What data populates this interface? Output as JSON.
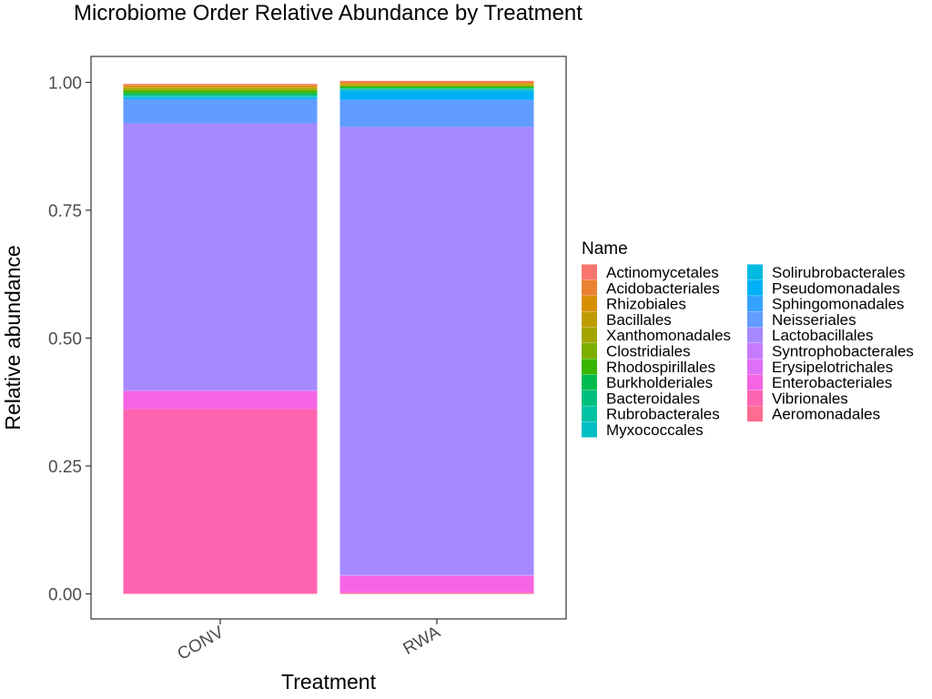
{
  "chart_data": {
    "type": "bar",
    "stacked": true,
    "title": "Microbiome Order Relative Abundance by Treatment",
    "xlabel": "Treatment",
    "ylabel": "Relative abundance",
    "categories": [
      "CONV",
      "RWA"
    ],
    "ylim": [
      0,
      1
    ],
    "y_ticks": [
      "0.00",
      "0.25",
      "0.50",
      "0.75",
      "1.00"
    ],
    "grid": false,
    "legend_title": "Name",
    "legend_position": "right",
    "series": [
      {
        "name": "Actinomycetales",
        "color": "#F8766D",
        "values": [
          0.002,
          0.002
        ]
      },
      {
        "name": "Acidobacteriales",
        "color": "#EA8331",
        "values": [
          0.002,
          0.002
        ]
      },
      {
        "name": "Rhizobiales",
        "color": "#D89000",
        "values": [
          0.003,
          0.003
        ]
      },
      {
        "name": "Bacillales",
        "color": "#C09B00",
        "values": [
          0.001,
          0.001
        ]
      },
      {
        "name": "Xanthomonadales",
        "color": "#A3A500",
        "values": [
          0.003,
          0.002
        ]
      },
      {
        "name": "Clostridiales",
        "color": "#7CAE00",
        "values": [
          0.003,
          0.001
        ]
      },
      {
        "name": "Rhodospirillales",
        "color": "#39B600",
        "values": [
          0.004,
          0.002
        ]
      },
      {
        "name": "Burkholderiales",
        "color": "#00BB4E",
        "values": [
          0.003,
          0.002
        ]
      },
      {
        "name": "Bacteroidales",
        "color": "#00BF7D",
        "values": [
          0.002,
          0.001
        ]
      },
      {
        "name": "Rubrobacterales",
        "color": "#00C1A3",
        "values": [
          0.001,
          0.001
        ]
      },
      {
        "name": "Myxococcales",
        "color": "#00BFC4",
        "values": [
          0.002,
          0.002
        ]
      },
      {
        "name": "Solirubrobacterales",
        "color": "#00BAE0",
        "values": [
          0.001,
          0.002
        ]
      },
      {
        "name": "Pseudomonadales",
        "color": "#00B0F6",
        "values": [
          0.002,
          0.015
        ]
      },
      {
        "name": "Sphingomonadales",
        "color": "#35A2FF",
        "values": [
          0.002,
          0.003
        ]
      },
      {
        "name": "Neisseriales",
        "color": "#619CFF",
        "values": [
          0.046,
          0.051
        ]
      },
      {
        "name": "Lactobacillales",
        "color": "#A58AFF",
        "values": [
          0.522,
          0.876
        ]
      },
      {
        "name": "Syntrophobacterales",
        "color": "#C77CFF",
        "values": [
          0.001,
          0.001
        ]
      },
      {
        "name": "Erysipelotrichales",
        "color": "#DF70F8",
        "values": [
          0.001,
          0.001
        ]
      },
      {
        "name": "Enterobacteriales",
        "color": "#F564E3",
        "values": [
          0.035,
          0.032
        ]
      },
      {
        "name": "Vibrionales",
        "color": "#FF64B0",
        "values": [
          0.36,
          0.002
        ]
      },
      {
        "name": "Aeromonadales",
        "color": "#FF6C91",
        "values": [
          0.001,
          0.001
        ]
      }
    ]
  }
}
